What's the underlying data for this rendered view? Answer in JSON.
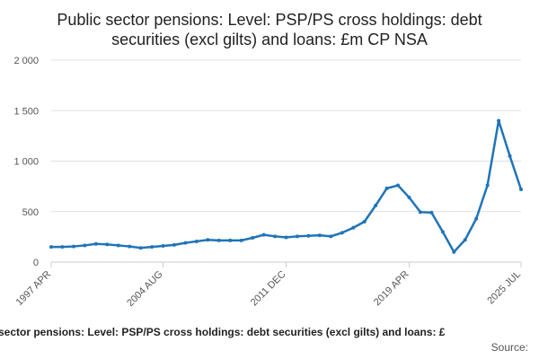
{
  "chart_data": {
    "type": "line",
    "title": [
      "Public sector pensions: Level: PSP/PS cross holdings: debt",
      "securities (excl gilts) and loans: £m CP NSA"
    ],
    "footer": "sector pensions: Level: PSP/PS cross holdings: debt securities (excl gilts) and loans: £",
    "source": "Source:",
    "categories": [
      "1997 APR",
      null,
      null,
      null,
      null,
      null,
      null,
      null,
      null,
      null,
      "2004 AUG",
      null,
      null,
      null,
      null,
      null,
      null,
      null,
      null,
      null,
      null,
      "2011 DEC",
      null,
      null,
      null,
      null,
      null,
      null,
      null,
      null,
      null,
      null,
      "2019 APR",
      null,
      null,
      null,
      null,
      null,
      null,
      null,
      null,
      null,
      "2025 JUL"
    ],
    "series": [
      {
        "color": "#1f74b8",
        "values": [
          150,
          150,
          155,
          165,
          180,
          175,
          165,
          155,
          140,
          150,
          160,
          170,
          190,
          205,
          220,
          215,
          215,
          215,
          240,
          270,
          255,
          245,
          255,
          260,
          265,
          255,
          290,
          340,
          400,
          560,
          730,
          760,
          640,
          495,
          490,
          300,
          100,
          220,
          430,
          760,
          1400,
          1050,
          720
        ]
      }
    ],
    "ylim": [
      0,
      2000
    ],
    "yticks": [
      0,
      500,
      {
        "value": 1000,
        "label": "1 000"
      },
      {
        "value": 1500,
        "label": "1 500"
      },
      {
        "value": 2000,
        "label": "2 000"
      }
    ],
    "grid": true
  }
}
